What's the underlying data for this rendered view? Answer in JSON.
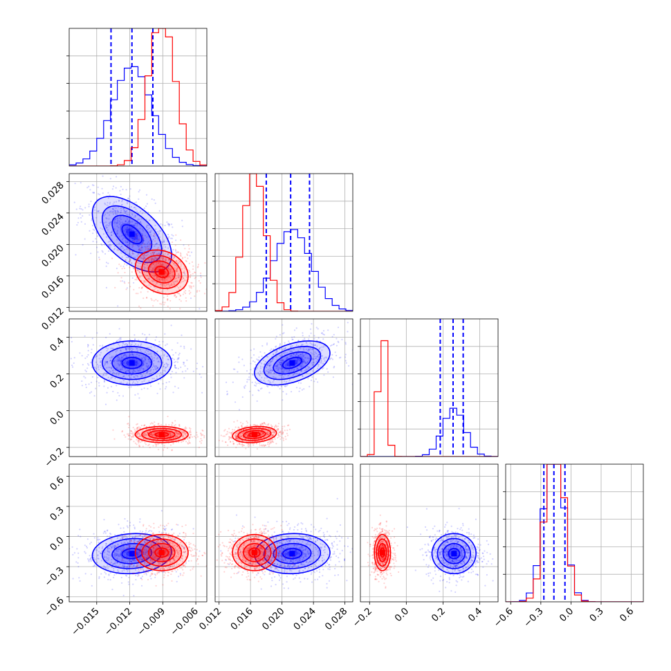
{
  "chart_data": {
    "type": "corner",
    "n_params": 4,
    "grid": true,
    "series": [
      {
        "color": "#0000ff",
        "quantile_lines": true,
        "means": [
          -0.0118,
          0.0213,
          0.26,
          -0.17
        ],
        "sds": [
          0.0018,
          0.0024,
          0.06,
          0.1
        ],
        "corr": [
          [
            1,
            -0.55,
            0.0,
            0.1
          ],
          [
            -0.55,
            1,
            0.45,
            0.05
          ],
          [
            0.0,
            0.45,
            1,
            0.0
          ],
          [
            0.1,
            0.05,
            0.0,
            1
          ]
        ],
        "quantiles": [
          [
            -0.0137,
            -0.0118,
            -0.0099
          ],
          [
            0.018,
            0.0211,
            0.0235
          ],
          [
            0.185,
            0.255,
            0.31
          ],
          [
            -0.27,
            -0.17,
            -0.06
          ]
        ],
        "hist_peak_density": [
          190,
          165,
          5.5,
          3.2
        ]
      },
      {
        "color": "#ff0000",
        "quantile_lines": false,
        "means": [
          -0.0091,
          0.0165,
          -0.13,
          -0.16
        ],
        "sds": [
          0.0012,
          0.0014,
          0.022,
          0.09
        ],
        "corr": [
          [
            1,
            -0.2,
            0.0,
            0.0
          ],
          [
            -0.2,
            1,
            0.2,
            0.0
          ],
          [
            0.0,
            0.2,
            1,
            0.0
          ],
          [
            0.0,
            0.0,
            0.0,
            1
          ]
        ],
        "hist_peak_density": [
          290,
          265,
          18,
          3.3
        ]
      }
    ],
    "axes": [
      {
        "range": [
          -0.0175,
          -0.005
        ],
        "ticks": [
          -0.015,
          -0.012,
          -0.009,
          -0.006
        ],
        "tick_labels": [
          "−0.015",
          "−0.012",
          "−0.009",
          "−0.006"
        ]
      },
      {
        "range": [
          0.0115,
          0.029
        ],
        "ticks": [
          0.012,
          0.016,
          0.02,
          0.024,
          0.028
        ],
        "tick_labels": [
          "0.012",
          "0.016",
          "0.020",
          "0.024",
          "0.028"
        ]
      },
      {
        "range": [
          -0.25,
          0.5
        ],
        "ticks": [
          -0.2,
          0.0,
          0.2,
          0.4
        ],
        "tick_labels": [
          "−0.2",
          "0.0",
          "0.2",
          "0.4"
        ]
      },
      {
        "range": [
          -0.65,
          0.72
        ],
        "ticks": [
          -0.6,
          -0.3,
          0.0,
          0.3,
          0.6
        ],
        "tick_labels": [
          "−0.6",
          "−0.3",
          "0.0",
          "0.3",
          "0.6"
        ]
      }
    ]
  }
}
